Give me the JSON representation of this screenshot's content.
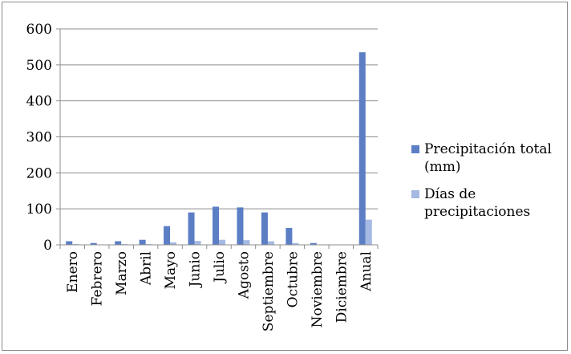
{
  "chart_data": {
    "type": "bar",
    "categories": [
      "Enero",
      "Febrero",
      "Marzo",
      "Abril",
      "Mayo",
      "Junio",
      "Julio",
      "Agosto",
      "Septiembre",
      "Octubre",
      "Noviembre",
      "Diciembre",
      "Anual"
    ],
    "series": [
      {
        "name": "Precipitación total (mm)",
        "color": "#5b7ec5",
        "values": [
          10,
          5,
          10,
          14,
          52,
          90,
          106,
          104,
          90,
          47,
          5,
          0,
          535
        ]
      },
      {
        "name": "Días de precipitaciones",
        "color": "#a5b9e3",
        "values": [
          2,
          1,
          2,
          2,
          7,
          11,
          14,
          13,
          10,
          5,
          1,
          0,
          70
        ]
      }
    ],
    "ylim": [
      0,
      600
    ],
    "yticks": [
      0,
      100,
      200,
      300,
      400,
      500,
      600
    ],
    "grid": true,
    "legend_position": "right"
  },
  "legend": {
    "items": [
      {
        "label": "Precipitación total (mm)",
        "color": "#5b7ec5"
      },
      {
        "label": "Días de precipitaciones",
        "color": "#a5b9e3"
      }
    ]
  }
}
